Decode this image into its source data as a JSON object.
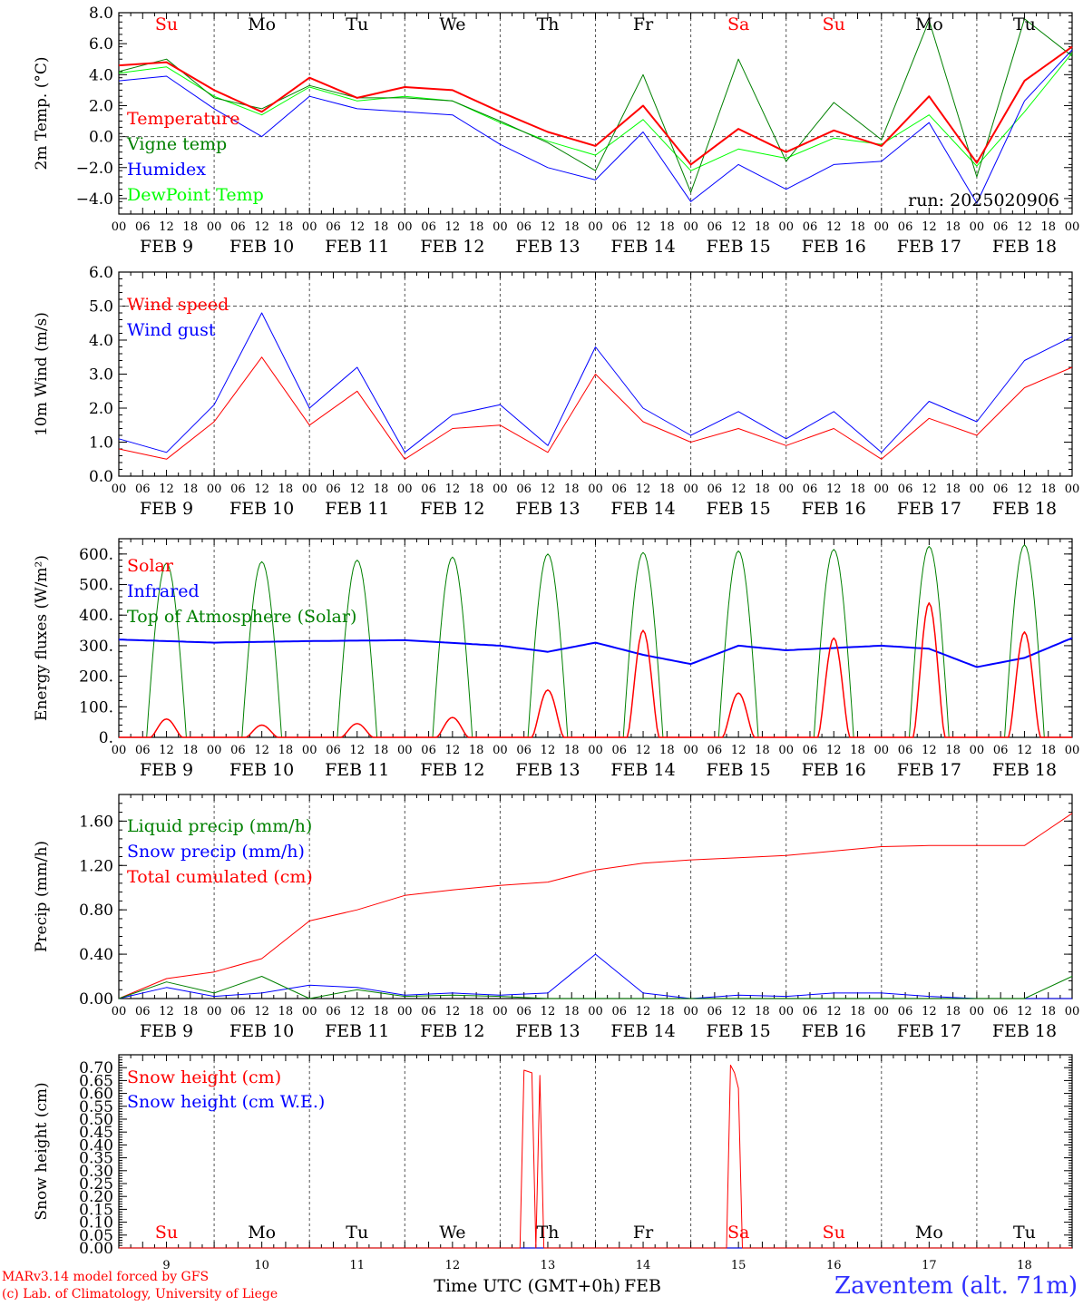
{
  "figure": {
    "station": "Zaventem (alt. 71m)",
    "credit_line1": "MARv3.14 model forced by GFS",
    "credit_line2": "(c) Lab. of Climatology, University of Liege",
    "colors": {
      "red": "#ff0000",
      "green": "#008000",
      "blue": "#0000ff",
      "lime": "#00ff00",
      "station": "#3030ff"
    }
  },
  "chart_data": [
    {
      "id": "temp",
      "type": "line",
      "ylabel": "2m Temp. (°C)",
      "ylim": [
        -5,
        8
      ],
      "yticks": [
        -4,
        -2,
        0,
        2,
        4,
        6,
        8
      ],
      "ytick_labels": [
        "−4.0",
        "−2.0",
        "0.0",
        "2.0",
        "4.0",
        "6.0",
        "8.0"
      ],
      "hline": 0,
      "annotation": "run: 2025020906",
      "day_labels": [
        "Su",
        "Mo",
        "Tu",
        "We",
        "Th",
        "Fr",
        "Sa",
        "Su",
        "Mo",
        "Tu"
      ],
      "day_label_colors": [
        "#ff0000",
        "#000000",
        "#000000",
        "#000000",
        "#000000",
        "#000000",
        "#ff0000",
        "#ff0000",
        "#000000",
        "#000000"
      ],
      "x_hours": [
        0,
        12,
        24,
        36,
        48,
        60,
        72,
        84,
        96,
        108,
        120,
        132,
        144,
        156,
        168,
        180,
        192,
        204,
        216,
        228,
        240
      ],
      "series": [
        {
          "name": "Temperature",
          "color": "#ff0000",
          "width": 2,
          "values": [
            4.6,
            4.8,
            3.0,
            1.6,
            3.8,
            2.5,
            3.2,
            3.0,
            1.6,
            0.3,
            -0.6,
            2.0,
            -1.8,
            0.5,
            -1.0,
            0.4,
            -0.6,
            2.6,
            -1.7,
            3.6,
            5.8
          ]
        },
        {
          "name": "Vigne temp",
          "color": "#008000",
          "width": 1,
          "values": [
            4.2,
            5.0,
            2.5,
            1.8,
            3.3,
            2.5,
            2.5,
            2.3,
            1.0,
            -0.4,
            -2.2,
            4.0,
            -3.6,
            5.0,
            -1.6,
            2.2,
            -0.2,
            7.5,
            -2.6,
            7.6,
            5.2
          ]
        },
        {
          "name": "Humidex",
          "color": "#0000ff",
          "width": 1,
          "values": [
            3.6,
            3.9,
            1.8,
            0.0,
            2.6,
            1.8,
            1.6,
            1.4,
            -0.5,
            -2.0,
            -2.8,
            0.3,
            -4.2,
            -1.8,
            -3.4,
            -1.8,
            -1.6,
            0.9,
            -4.3,
            2.3,
            5.6
          ]
        },
        {
          "name": "DewPoint Temp",
          "color": "#00ff00",
          "width": 1,
          "values": [
            4.1,
            4.5,
            2.6,
            1.4,
            3.2,
            2.3,
            2.6,
            2.3,
            0.9,
            -0.3,
            -1.2,
            1.1,
            -2.2,
            -0.8,
            -1.4,
            -0.1,
            -0.5,
            1.4,
            -1.9,
            1.6,
            5.4
          ]
        }
      ]
    },
    {
      "id": "wind",
      "type": "line",
      "ylabel": "10m Wind (m/s)",
      "ylim": [
        0,
        6
      ],
      "yticks": [
        0,
        1,
        2,
        3,
        4,
        5,
        6
      ],
      "ytick_labels": [
        "0.0",
        "1.0",
        "2.0",
        "3.0",
        "4.0",
        "5.0",
        "6.0"
      ],
      "hline": 5,
      "x_hours": [
        0,
        12,
        24,
        36,
        48,
        60,
        72,
        84,
        96,
        108,
        120,
        132,
        144,
        156,
        168,
        180,
        192,
        204,
        216,
        228,
        240
      ],
      "series": [
        {
          "name": "Wind speed",
          "color": "#ff0000",
          "width": 1,
          "values": [
            0.8,
            0.5,
            1.6,
            3.5,
            1.5,
            2.5,
            0.5,
            1.4,
            1.5,
            0.7,
            3.0,
            1.6,
            1.0,
            1.4,
            0.9,
            1.4,
            0.5,
            1.7,
            1.2,
            2.6,
            3.2
          ]
        },
        {
          "name": "Wind gust",
          "color": "#0000ff",
          "width": 1,
          "values": [
            1.1,
            0.7,
            2.1,
            4.8,
            2.0,
            3.2,
            0.7,
            1.8,
            2.1,
            0.9,
            3.8,
            2.0,
            1.2,
            1.9,
            1.1,
            1.9,
            0.7,
            2.2,
            1.6,
            3.4,
            4.1
          ]
        }
      ]
    },
    {
      "id": "energy",
      "type": "line",
      "ylabel": "Energy fluxes (W/m²)",
      "ylim": [
        0,
        650
      ],
      "yticks": [
        0,
        100,
        200,
        300,
        400,
        500,
        600
      ],
      "ytick_labels": [
        "0.",
        "100.",
        "200.",
        "300.",
        "400.",
        "500.",
        "600."
      ],
      "solar_peaks": [
        60,
        40,
        45,
        65,
        155,
        350,
        145,
        325,
        440,
        345
      ],
      "toa_peaks": [
        570,
        575,
        580,
        590,
        600,
        605,
        610,
        615,
        625,
        630
      ],
      "infrared_hours": [
        0,
        24,
        48,
        72,
        96,
        108,
        120,
        132,
        144,
        156,
        168,
        192,
        204,
        216,
        228,
        240
      ],
      "infrared_values": [
        320,
        310,
        315,
        318,
        300,
        280,
        310,
        270,
        240,
        300,
        285,
        300,
        290,
        230,
        260,
        325
      ],
      "series": [
        {
          "name": "Solar",
          "color": "#ff0000",
          "width": 1
        },
        {
          "name": "Infrared",
          "color": "#0000ff",
          "width": 2
        },
        {
          "name": "Top of Atmosphere (Solar)",
          "color": "#008000",
          "width": 1
        }
      ]
    },
    {
      "id": "precip",
      "type": "line",
      "ylabel": "Precip (mm/h)",
      "ylim": [
        0,
        1.84
      ],
      "yticks": [
        0,
        0.4,
        0.8,
        1.2,
        1.6
      ],
      "ytick_labels": [
        "0.00",
        "0.40",
        "0.80",
        "1.20",
        "1.60"
      ],
      "x_hours": [
        0,
        12,
        24,
        36,
        48,
        60,
        72,
        84,
        96,
        108,
        120,
        132,
        144,
        156,
        168,
        180,
        192,
        204,
        216,
        228,
        240
      ],
      "series": [
        {
          "name": "Liquid precip (mm/h)",
          "color": "#008000",
          "width": 1,
          "values": [
            0.0,
            0.15,
            0.05,
            0.2,
            0.0,
            0.08,
            0.02,
            0.03,
            0.02,
            0.0,
            0.0,
            0.0,
            0.0,
            0.0,
            0.0,
            0.0,
            0.0,
            0.0,
            0.0,
            0.0,
            0.2
          ]
        },
        {
          "name": "Snow precip (mm/h)",
          "color": "#0000ff",
          "width": 1,
          "values": [
            0.0,
            0.1,
            0.02,
            0.05,
            0.12,
            0.1,
            0.03,
            0.05,
            0.03,
            0.05,
            0.4,
            0.05,
            0.0,
            0.03,
            0.02,
            0.05,
            0.05,
            0.02,
            0.0,
            0.0,
            0.0
          ]
        },
        {
          "name": "Total cumulated (cm)",
          "color": "#ff0000",
          "width": 1,
          "values": [
            0.0,
            0.18,
            0.24,
            0.36,
            0.7,
            0.8,
            0.93,
            0.98,
            1.02,
            1.05,
            1.16,
            1.22,
            1.25,
            1.27,
            1.29,
            1.33,
            1.37,
            1.38,
            1.38,
            1.38,
            1.67
          ]
        }
      ]
    },
    {
      "id": "snow",
      "type": "line",
      "ylabel": "Snow height (cm)",
      "ylim": [
        0,
        0.75
      ],
      "yticks": [
        0,
        0.05,
        0.1,
        0.15,
        0.2,
        0.25,
        0.3,
        0.35,
        0.4,
        0.45,
        0.5,
        0.55,
        0.6,
        0.65,
        0.7
      ],
      "ytick_labels": [
        "0.00",
        "0.05",
        "0.10",
        "0.15",
        "0.20",
        "0.25",
        "0.30",
        "0.35",
        "0.40",
        "0.45",
        "0.50",
        "0.55",
        "0.60",
        "0.65",
        "0.70"
      ],
      "xlabel": "Time UTC (GMT+0h)",
      "xunit": "FEB",
      "day_numbers": [
        "9",
        "10",
        "11",
        "12",
        "13",
        "14",
        "15",
        "16",
        "17",
        "18"
      ],
      "day_labels": [
        "Su",
        "Mo",
        "Tu",
        "We",
        "Th",
        "Fr",
        "Sa",
        "Su",
        "Mo",
        "Tu"
      ],
      "day_label_colors": [
        "#ff0000",
        "#000000",
        "#000000",
        "#000000",
        "#000000",
        "#000000",
        "#ff0000",
        "#ff0000",
        "#000000",
        "#000000"
      ],
      "x_hours": [
        0,
        101,
        102,
        104,
        105,
        106,
        107,
        108,
        153,
        154,
        155,
        156,
        157,
        240
      ],
      "series": [
        {
          "name": "Snow height (cm)",
          "color": "#ff0000",
          "width": 1,
          "values": [
            0,
            0,
            0.69,
            0.68,
            0,
            0.67,
            0,
            0,
            0,
            0.71,
            0.68,
            0.62,
            0,
            0
          ]
        },
        {
          "name": "Snow height (cm W.E.)",
          "color": "#0000ff",
          "width": 1,
          "values": [
            0,
            0,
            0,
            0,
            0,
            0,
            0,
            0,
            0,
            0,
            0,
            0,
            0,
            0
          ]
        }
      ]
    }
  ],
  "x_axis": {
    "hour_labels": [
      "00",
      "06",
      "12",
      "18"
    ],
    "final_hour_label": "00",
    "date_labels": [
      "FEB  9",
      "FEB 10",
      "FEB 11",
      "FEB 12",
      "FEB 13",
      "FEB 14",
      "FEB 15",
      "FEB 16",
      "FEB 17",
      "FEB 18"
    ]
  }
}
